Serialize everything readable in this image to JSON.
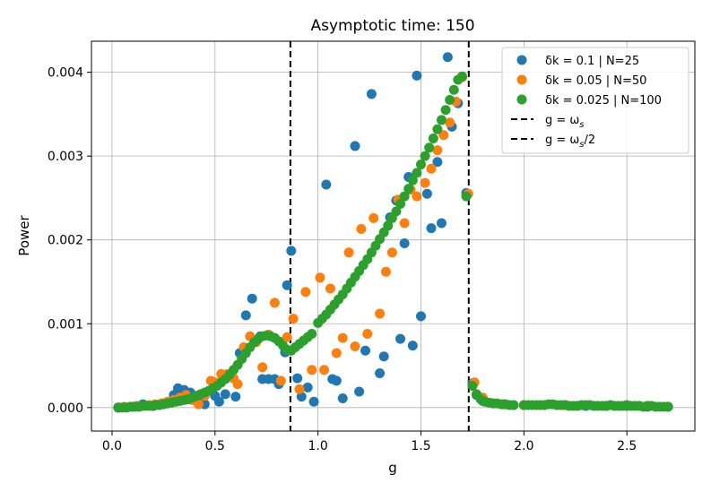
{
  "chart_data": {
    "type": "scatter",
    "title": "Asymptotic time: 150",
    "xlabel": "g",
    "ylabel": "Power",
    "xlim": [
      -0.1,
      2.83
    ],
    "ylim": [
      -0.00028,
      0.00437
    ],
    "xticks": [
      0.0,
      0.5,
      1.0,
      1.5,
      2.0,
      2.5
    ],
    "xtick_labels": [
      "0.0",
      "0.5",
      "1.0",
      "1.5",
      "2.0",
      "2.5"
    ],
    "yticks": [
      0.0,
      0.001,
      0.002,
      0.003,
      0.004
    ],
    "ytick_labels": [
      "0.000",
      "0.001",
      "0.002",
      "0.003",
      "0.004"
    ],
    "grid": true,
    "legend_position": "top-right",
    "vlines": [
      {
        "name": "g = ω_s",
        "x": 1.732,
        "color": "#000000",
        "style": "dashed"
      },
      {
        "name": "g = ω_s/2",
        "x": 0.866,
        "color": "#000000",
        "style": "dashed"
      }
    ],
    "legend": [
      {
        "label": "δk = 0.1 | N=25",
        "kind": "marker",
        "color": "#1f77b4"
      },
      {
        "label": "δk = 0.05 | N=50",
        "kind": "marker",
        "color": "#ff7f0e"
      },
      {
        "label": "δk = 0.025 | N=100",
        "kind": "marker",
        "color": "#2ca02c"
      },
      {
        "label": "g = ω",
        "sub": "s",
        "suffix": "",
        "kind": "line",
        "color": "#000000"
      },
      {
        "label": "g = ω",
        "sub": "s",
        "suffix": "/2",
        "kind": "line",
        "color": "#000000"
      }
    ],
    "series": [
      {
        "name": "δk = 0.1 | N=25",
        "color": "#1f77b4",
        "points": [
          [
            0.03,
            0.0
          ],
          [
            0.1,
            1e-05
          ],
          [
            0.15,
            4e-05
          ],
          [
            0.2,
            2e-05
          ],
          [
            0.25,
            5e-05
          ],
          [
            0.3,
            0.00015
          ],
          [
            0.32,
            0.00023
          ],
          [
            0.35,
            0.00021
          ],
          [
            0.38,
            0.00018
          ],
          [
            0.42,
            8e-05
          ],
          [
            0.45,
            4e-05
          ],
          [
            0.5,
            0.00014
          ],
          [
            0.52,
            7e-05
          ],
          [
            0.55,
            0.00016
          ],
          [
            0.6,
            0.00013
          ],
          [
            0.62,
            0.00065
          ],
          [
            0.65,
            0.0011
          ],
          [
            0.68,
            0.0013
          ],
          [
            0.72,
            0.00085
          ],
          [
            0.73,
            0.00034
          ],
          [
            0.76,
            0.00034
          ],
          [
            0.79,
            0.00034
          ],
          [
            0.81,
            0.00028
          ],
          [
            0.84,
            0.00066
          ],
          [
            0.85,
            0.00146
          ],
          [
            0.87,
            0.00187
          ],
          [
            0.9,
            0.00035
          ],
          [
            0.92,
            0.00013
          ],
          [
            0.95,
            0.00024
          ],
          [
            0.98,
            7e-05
          ],
          [
            1.04,
            0.00266
          ],
          [
            1.07,
            0.00034
          ],
          [
            1.09,
            0.00032
          ],
          [
            1.12,
            0.00011
          ],
          [
            1.18,
            0.00312
          ],
          [
            1.2,
            0.00019
          ],
          [
            1.23,
            0.00068
          ],
          [
            1.26,
            0.00374
          ],
          [
            1.3,
            0.00041
          ],
          [
            1.32,
            0.00061
          ],
          [
            1.35,
            0.00227
          ],
          [
            1.38,
            0.00247
          ],
          [
            1.4,
            0.00082
          ],
          [
            1.42,
            0.00196
          ],
          [
            1.44,
            0.00275
          ],
          [
            1.46,
            0.00074
          ],
          [
            1.48,
            0.00396
          ],
          [
            1.5,
            0.00109
          ],
          [
            1.53,
            0.00255
          ],
          [
            1.55,
            0.00214
          ],
          [
            1.58,
            0.00293
          ],
          [
            1.6,
            0.0022
          ],
          [
            1.63,
            0.00418
          ],
          [
            1.65,
            0.00335
          ],
          [
            1.68,
            0.00363
          ],
          [
            1.72,
            0.00256
          ],
          [
            1.75,
            0.00029
          ],
          [
            1.77,
            0.00015
          ],
          [
            1.8,
            8e-05
          ],
          [
            1.85,
            5e-05
          ],
          [
            1.9,
            4e-05
          ],
          [
            1.95,
            3e-05
          ],
          [
            2.0,
            3e-05
          ],
          [
            2.1,
            3e-05
          ],
          [
            2.2,
            3e-05
          ],
          [
            2.3,
            2e-05
          ],
          [
            2.4,
            2e-05
          ],
          [
            2.5,
            2e-05
          ],
          [
            2.6,
            1e-05
          ],
          [
            2.7,
            1e-05
          ]
        ]
      },
      {
        "name": "δk = 0.05 | N=50",
        "color": "#ff7f0e",
        "points": [
          [
            0.03,
            0.0
          ],
          [
            0.06,
            1e-05
          ],
          [
            0.09,
            1e-05
          ],
          [
            0.12,
            2e-05
          ],
          [
            0.15,
            2e-05
          ],
          [
            0.18,
            3e-05
          ],
          [
            0.21,
            4e-05
          ],
          [
            0.24,
            5e-05
          ],
          [
            0.27,
            7e-05
          ],
          [
            0.3,
            9e-05
          ],
          [
            0.33,
            0.00012
          ],
          [
            0.36,
            0.00015
          ],
          [
            0.39,
            9e-05
          ],
          [
            0.42,
            4e-05
          ],
          [
            0.45,
            0.00014
          ],
          [
            0.48,
            0.00032
          ],
          [
            0.5,
            0.0003
          ],
          [
            0.53,
            0.0004
          ],
          [
            0.56,
            0.0004
          ],
          [
            0.59,
            0.00035
          ],
          [
            0.61,
            0.00028
          ],
          [
            0.64,
            0.00072
          ],
          [
            0.67,
            0.00085
          ],
          [
            0.7,
            0.00078
          ],
          [
            0.73,
            0.00048
          ],
          [
            0.76,
            0.00087
          ],
          [
            0.79,
            0.00125
          ],
          [
            0.82,
            0.00032
          ],
          [
            0.85,
            0.00084
          ],
          [
            0.88,
            0.00106
          ],
          [
            0.91,
            0.00022
          ],
          [
            0.94,
            0.00138
          ],
          [
            0.97,
            0.00045
          ],
          [
            1.01,
            0.00155
          ],
          [
            1.03,
            0.00045
          ],
          [
            1.06,
            0.00142
          ],
          [
            1.09,
            0.00065
          ],
          [
            1.12,
            0.00083
          ],
          [
            1.15,
            0.00185
          ],
          [
            1.18,
            0.00073
          ],
          [
            1.21,
            0.00213
          ],
          [
            1.24,
            0.00088
          ],
          [
            1.27,
            0.00226
          ],
          [
            1.3,
            0.00112
          ],
          [
            1.33,
            0.00162
          ],
          [
            1.36,
            0.00185
          ],
          [
            1.39,
            0.00248
          ],
          [
            1.42,
            0.0022
          ],
          [
            1.45,
            0.0026
          ],
          [
            1.48,
            0.00252
          ],
          [
            1.52,
            0.00268
          ],
          [
            1.55,
            0.00285
          ],
          [
            1.58,
            0.00307
          ],
          [
            1.61,
            0.00325
          ],
          [
            1.64,
            0.0034
          ],
          [
            1.67,
            0.00365
          ],
          [
            1.7,
            0.00394
          ],
          [
            1.73,
            0.00255
          ],
          [
            1.76,
            0.0003
          ],
          [
            1.8,
            0.00012
          ],
          [
            1.85,
            5e-05
          ],
          [
            1.9,
            4e-05
          ],
          [
            2.0,
            3e-05
          ],
          [
            2.2,
            3e-05
          ],
          [
            2.4,
            2e-05
          ],
          [
            2.6,
            2e-05
          ],
          [
            2.7,
            1e-05
          ]
        ]
      },
      {
        "name": "δk = 0.025 | N=100",
        "color": "#2ca02c",
        "points": [
          [
            0.03,
            0.0
          ],
          [
            0.05,
            0.0
          ],
          [
            0.07,
            0.0
          ],
          [
            0.09,
            1e-05
          ],
          [
            0.11,
            1e-05
          ],
          [
            0.13,
            1e-05
          ],
          [
            0.15,
            2e-05
          ],
          [
            0.17,
            2e-05
          ],
          [
            0.19,
            2e-05
          ],
          [
            0.21,
            3e-05
          ],
          [
            0.23,
            3e-05
          ],
          [
            0.25,
            4e-05
          ],
          [
            0.27,
            5e-05
          ],
          [
            0.29,
            6e-05
          ],
          [
            0.31,
            7e-05
          ],
          [
            0.33,
            8e-05
          ],
          [
            0.35,
            9e-05
          ],
          [
            0.37,
            0.0001
          ],
          [
            0.39,
            0.00012
          ],
          [
            0.41,
            0.00014
          ],
          [
            0.43,
            0.00016
          ],
          [
            0.45,
            0.00018
          ],
          [
            0.47,
            0.0002
          ],
          [
            0.49,
            0.00023
          ],
          [
            0.51,
            0.00026
          ],
          [
            0.53,
            0.0003
          ],
          [
            0.55,
            0.00034
          ],
          [
            0.57,
            0.00039
          ],
          [
            0.59,
            0.00045
          ],
          [
            0.61,
            0.00051
          ],
          [
            0.63,
            0.00058
          ],
          [
            0.65,
            0.00065
          ],
          [
            0.67,
            0.00072
          ],
          [
            0.69,
            0.00078
          ],
          [
            0.71,
            0.00082
          ],
          [
            0.73,
            0.00085
          ],
          [
            0.75,
            0.00086
          ],
          [
            0.77,
            0.00085
          ],
          [
            0.79,
            0.00083
          ],
          [
            0.81,
            0.00079
          ],
          [
            0.83,
            0.00074
          ],
          [
            0.85,
            0.00069
          ],
          [
            0.87,
            0.00068
          ],
          [
            0.89,
            0.00072
          ],
          [
            0.91,
            0.00076
          ],
          [
            0.93,
            0.0008
          ],
          [
            0.95,
            0.00084
          ],
          [
            0.97,
            0.00088
          ],
          [
            1.0,
            0.00101
          ],
          [
            1.02,
            0.00106
          ],
          [
            1.04,
            0.00111
          ],
          [
            1.06,
            0.00117
          ],
          [
            1.08,
            0.00123
          ],
          [
            1.1,
            0.00129
          ],
          [
            1.12,
            0.00135
          ],
          [
            1.14,
            0.00142
          ],
          [
            1.16,
            0.00149
          ],
          [
            1.18,
            0.00156
          ],
          [
            1.2,
            0.00163
          ],
          [
            1.22,
            0.0017
          ],
          [
            1.24,
            0.00177
          ],
          [
            1.26,
            0.00185
          ],
          [
            1.28,
            0.00193
          ],
          [
            1.3,
            0.00201
          ],
          [
            1.32,
            0.00209
          ],
          [
            1.34,
            0.00217
          ],
          [
            1.36,
            0.00226
          ],
          [
            1.38,
            0.00234
          ],
          [
            1.4,
            0.00243
          ],
          [
            1.42,
            0.00252
          ],
          [
            1.44,
            0.00261
          ],
          [
            1.46,
            0.00271
          ],
          [
            1.48,
            0.0028
          ],
          [
            1.5,
            0.0029
          ],
          [
            1.52,
            0.003
          ],
          [
            1.54,
            0.0031
          ],
          [
            1.56,
            0.00321
          ],
          [
            1.58,
            0.00332
          ],
          [
            1.6,
            0.00343
          ],
          [
            1.62,
            0.00355
          ],
          [
            1.64,
            0.00367
          ],
          [
            1.66,
            0.00379
          ],
          [
            1.68,
            0.00391
          ],
          [
            1.7,
            0.00395
          ],
          [
            1.72,
            0.00252
          ],
          [
            1.75,
            0.00026
          ],
          [
            1.77,
            0.00016
          ],
          [
            1.79,
            0.0001
          ],
          [
            1.81,
            7e-05
          ],
          [
            1.83,
            6e-05
          ],
          [
            1.85,
            5e-05
          ],
          [
            1.87,
            5e-05
          ],
          [
            1.89,
            4e-05
          ],
          [
            1.91,
            4e-05
          ],
          [
            1.93,
            3e-05
          ],
          [
            1.95,
            3e-05
          ],
          [
            2.0,
            3e-05
          ],
          [
            2.02,
            3e-05
          ],
          [
            2.04,
            3e-05
          ],
          [
            2.06,
            3e-05
          ],
          [
            2.08,
            3e-05
          ],
          [
            2.1,
            3e-05
          ],
          [
            2.12,
            4e-05
          ],
          [
            2.14,
            4e-05
          ],
          [
            2.16,
            3e-05
          ],
          [
            2.18,
            3e-05
          ],
          [
            2.2,
            3e-05
          ],
          [
            2.22,
            2e-05
          ],
          [
            2.24,
            2e-05
          ],
          [
            2.26,
            2e-05
          ],
          [
            2.28,
            3e-05
          ],
          [
            2.3,
            3e-05
          ],
          [
            2.32,
            3e-05
          ],
          [
            2.34,
            2e-05
          ],
          [
            2.36,
            2e-05
          ],
          [
            2.38,
            2e-05
          ],
          [
            2.4,
            2e-05
          ],
          [
            2.42,
            3e-05
          ],
          [
            2.44,
            2e-05
          ],
          [
            2.46,
            2e-05
          ],
          [
            2.48,
            2e-05
          ],
          [
            2.5,
            3e-05
          ],
          [
            2.52,
            2e-05
          ],
          [
            2.54,
            2e-05
          ],
          [
            2.56,
            2e-05
          ],
          [
            2.58,
            1e-05
          ],
          [
            2.6,
            2e-05
          ],
          [
            2.62,
            2e-05
          ],
          [
            2.64,
            1e-05
          ],
          [
            2.66,
            1e-05
          ],
          [
            2.68,
            1e-05
          ],
          [
            2.7,
            1e-05
          ]
        ]
      }
    ]
  }
}
